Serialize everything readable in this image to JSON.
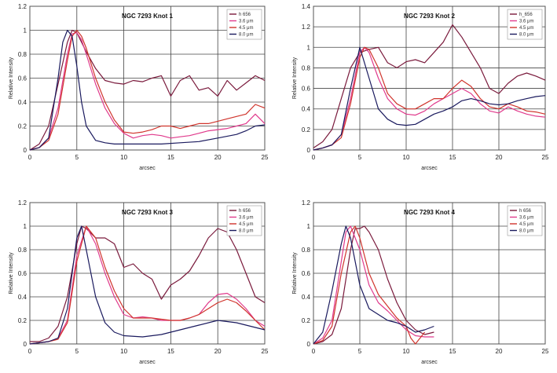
{
  "colors": {
    "h_alpha": "#7a1a3c",
    "c3_6": "#e03a8c",
    "c4_5": "#d0342c",
    "c8_0": "#1a1a5e"
  },
  "chart_data": [
    {
      "type": "line",
      "title": "NGC 7293 Knot 1",
      "xlabel": "arcsec",
      "ylabel": "Relative Intensity",
      "xlim": [
        0,
        25
      ],
      "ylim": [
        0,
        1.2
      ],
      "xticks": [
        "0",
        "5",
        "10",
        "15",
        "20",
        "25"
      ],
      "yticks": [
        "0",
        "0.2",
        "0.4",
        "0.6",
        "0.8",
        "1",
        "1.2"
      ],
      "series": [
        {
          "name": "h 656",
          "color_key": "h_alpha",
          "x": [
            0,
            1,
            2,
            3,
            4,
            4.5,
            5,
            5.5,
            6,
            6.5,
            7,
            8,
            9,
            10,
            11,
            12,
            13,
            14,
            15,
            16,
            17,
            18,
            19,
            20,
            21,
            22,
            23,
            24,
            25
          ],
          "y": [
            0,
            0.05,
            0.2,
            0.55,
            0.9,
            1.0,
            0.98,
            0.9,
            0.82,
            0.75,
            0.68,
            0.58,
            0.56,
            0.55,
            0.58,
            0.57,
            0.6,
            0.62,
            0.45,
            0.58,
            0.62,
            0.5,
            0.52,
            0.45,
            0.58,
            0.5,
            0.56,
            0.62,
            0.58
          ]
        },
        {
          "name": "3.6 μm",
          "color_key": "c3_6",
          "x": [
            0,
            1,
            2,
            3,
            4,
            4.5,
            5,
            5.5,
            6,
            7,
            8,
            9,
            10,
            11,
            12,
            13,
            14,
            15,
            16,
            17,
            18,
            19,
            20,
            21,
            22,
            23,
            24,
            25
          ],
          "y": [
            0,
            0.02,
            0.1,
            0.35,
            0.8,
            0.97,
            0.98,
            0.92,
            0.8,
            0.55,
            0.35,
            0.22,
            0.14,
            0.1,
            0.12,
            0.13,
            0.12,
            0.1,
            0.11,
            0.12,
            0.14,
            0.16,
            0.17,
            0.18,
            0.2,
            0.22,
            0.3,
            0.22
          ]
        },
        {
          "name": "4.5 μm",
          "color_key": "c4_5",
          "x": [
            0,
            1,
            2,
            3,
            4,
            4.5,
            5,
            5.5,
            6,
            7,
            8,
            9,
            10,
            11,
            12,
            13,
            14,
            15,
            16,
            17,
            18,
            19,
            20,
            21,
            22,
            23,
            24,
            25
          ],
          "y": [
            0,
            0.02,
            0.08,
            0.3,
            0.75,
            0.95,
            1.0,
            0.95,
            0.85,
            0.6,
            0.4,
            0.25,
            0.15,
            0.14,
            0.15,
            0.17,
            0.2,
            0.2,
            0.18,
            0.2,
            0.22,
            0.22,
            0.24,
            0.26,
            0.28,
            0.3,
            0.38,
            0.35
          ]
        },
        {
          "name": "8.0 μm",
          "color_key": "c8_0",
          "x": [
            0,
            1,
            2,
            3,
            3.5,
            4,
            4.5,
            5,
            5.5,
            6,
            7,
            8,
            9,
            10,
            12,
            14,
            16,
            18,
            20,
            22,
            23,
            24,
            25
          ],
          "y": [
            0,
            0.02,
            0.1,
            0.6,
            0.9,
            1.0,
            0.95,
            0.7,
            0.4,
            0.2,
            0.08,
            0.06,
            0.05,
            0.05,
            0.05,
            0.05,
            0.06,
            0.07,
            0.1,
            0.13,
            0.16,
            0.2,
            0.21
          ]
        }
      ]
    },
    {
      "type": "line",
      "title": "NGC 7293 Knot 2",
      "xlabel": "arcsec",
      "ylabel": "Relative Intensity",
      "xlim": [
        0,
        25
      ],
      "ylim": [
        0,
        1.4
      ],
      "xticks": [
        "0",
        "5",
        "10",
        "15",
        "20",
        "25"
      ],
      "yticks": [
        "0",
        "0.2",
        "0.4",
        "0.6",
        "0.8",
        "1",
        "1.2",
        "1.4"
      ],
      "series": [
        {
          "name": "h_656",
          "color_key": "h_alpha",
          "x": [
            0,
            1,
            2,
            3,
            4,
            5,
            6,
            7,
            8,
            9,
            10,
            11,
            12,
            13,
            14,
            15,
            16,
            17,
            18,
            19,
            20,
            21,
            22,
            23,
            24,
            25
          ],
          "y": [
            0.02,
            0.08,
            0.2,
            0.5,
            0.8,
            0.95,
            0.98,
            1.0,
            0.85,
            0.8,
            0.86,
            0.88,
            0.85,
            0.95,
            1.05,
            1.22,
            1.1,
            0.95,
            0.8,
            0.6,
            0.55,
            0.65,
            0.72,
            0.75,
            0.72,
            0.68
          ]
        },
        {
          "name": "3.6 μm",
          "color_key": "c3_6",
          "x": [
            0,
            1,
            2,
            3,
            4,
            5,
            5.5,
            6,
            7,
            8,
            9,
            10,
            11,
            12,
            13,
            14,
            15,
            16,
            17,
            18,
            19,
            20,
            21,
            22,
            23,
            24,
            25
          ],
          "y": [
            0,
            0.02,
            0.05,
            0.15,
            0.5,
            0.95,
            1.0,
            0.95,
            0.7,
            0.5,
            0.4,
            0.35,
            0.34,
            0.38,
            0.45,
            0.5,
            0.55,
            0.6,
            0.55,
            0.45,
            0.38,
            0.36,
            0.42,
            0.38,
            0.35,
            0.33,
            0.32
          ]
        },
        {
          "name": "4.5 μm",
          "color_key": "c4_5",
          "x": [
            0,
            1,
            2,
            3,
            4,
            5,
            5.5,
            6,
            7,
            8,
            9,
            10,
            11,
            12,
            13,
            14,
            15,
            16,
            17,
            18,
            19,
            20,
            21,
            22,
            23,
            24,
            25
          ],
          "y": [
            0,
            0.02,
            0.05,
            0.12,
            0.45,
            0.9,
            1.0,
            0.98,
            0.8,
            0.55,
            0.45,
            0.4,
            0.4,
            0.45,
            0.5,
            0.5,
            0.6,
            0.68,
            0.62,
            0.5,
            0.42,
            0.4,
            0.45,
            0.42,
            0.38,
            0.37,
            0.35
          ]
        },
        {
          "name": "8.0 μm",
          "color_key": "c8_0",
          "x": [
            0,
            1,
            2,
            3,
            4,
            5,
            6,
            7,
            8,
            9,
            10,
            11,
            12,
            13,
            14,
            15,
            16,
            17,
            18,
            19,
            20,
            21,
            22,
            23,
            24,
            25
          ],
          "y": [
            0,
            0.02,
            0.05,
            0.15,
            0.6,
            1.0,
            0.7,
            0.4,
            0.3,
            0.25,
            0.24,
            0.25,
            0.3,
            0.35,
            0.38,
            0.42,
            0.48,
            0.5,
            0.48,
            0.45,
            0.44,
            0.45,
            0.48,
            0.5,
            0.52,
            0.53
          ]
        }
      ]
    },
    {
      "type": "line",
      "title": "NGC 7293 Knot 3",
      "xlabel": "arcsec",
      "ylabel": "Relative Intensity",
      "xlim": [
        0,
        25
      ],
      "ylim": [
        0,
        1.2
      ],
      "xticks": [
        "0",
        "5",
        "10",
        "15",
        "20",
        "25"
      ],
      "yticks": [
        "0",
        "0.2",
        "0.4",
        "0.6",
        "0.8",
        "1",
        "1.2"
      ],
      "series": [
        {
          "name": "h 656",
          "color_key": "h_alpha",
          "x": [
            0,
            1,
            2,
            3,
            4,
            5,
            5.5,
            6,
            7,
            8,
            9,
            10,
            11,
            12,
            13,
            14,
            15,
            16,
            17,
            18,
            19,
            20,
            21,
            22,
            23,
            24,
            25
          ],
          "y": [
            0.02,
            0.02,
            0.05,
            0.15,
            0.4,
            0.85,
            1.0,
            0.98,
            0.9,
            0.9,
            0.85,
            0.65,
            0.68,
            0.6,
            0.55,
            0.38,
            0.5,
            0.55,
            0.62,
            0.75,
            0.9,
            0.98,
            0.95,
            0.8,
            0.6,
            0.4,
            0.35
          ]
        },
        {
          "name": "3.6 μm",
          "color_key": "c3_6",
          "x": [
            0,
            1,
            2,
            3,
            4,
            5,
            6,
            7,
            8,
            9,
            10,
            11,
            12,
            13,
            14,
            15,
            16,
            17,
            18,
            19,
            20,
            21,
            22,
            23,
            24,
            25
          ],
          "y": [
            0,
            0.01,
            0.02,
            0.05,
            0.2,
            0.75,
            1.0,
            0.85,
            0.6,
            0.4,
            0.25,
            0.22,
            0.23,
            0.22,
            0.2,
            0.2,
            0.2,
            0.22,
            0.25,
            0.35,
            0.42,
            0.43,
            0.38,
            0.3,
            0.2,
            0.15
          ]
        },
        {
          "name": "4.5 μm",
          "color_key": "c4_5",
          "x": [
            0,
            1,
            2,
            3,
            4,
            5,
            6,
            7,
            8,
            9,
            10,
            11,
            12,
            13,
            14,
            15,
            16,
            17,
            18,
            19,
            20,
            21,
            22,
            23,
            24,
            25
          ],
          "y": [
            0,
            0.01,
            0.02,
            0.04,
            0.18,
            0.7,
            1.0,
            0.9,
            0.65,
            0.45,
            0.3,
            0.22,
            0.22,
            0.22,
            0.21,
            0.2,
            0.2,
            0.22,
            0.25,
            0.3,
            0.35,
            0.38,
            0.35,
            0.28,
            0.2,
            0.12
          ]
        },
        {
          "name": "8.0 μm",
          "color_key": "c8_0",
          "x": [
            0,
            1,
            2,
            3,
            4,
            5,
            5.5,
            6,
            7,
            8,
            9,
            10,
            12,
            14,
            16,
            18,
            20,
            22,
            24,
            25
          ],
          "y": [
            0,
            0.01,
            0.02,
            0.05,
            0.3,
            0.9,
            1.0,
            0.8,
            0.4,
            0.18,
            0.1,
            0.07,
            0.06,
            0.08,
            0.12,
            0.16,
            0.2,
            0.18,
            0.14,
            0.12
          ]
        }
      ]
    },
    {
      "type": "line",
      "title": "NGC 7293 Knot 4",
      "xlabel": "arcsec",
      "ylabel": "Relative Intensity",
      "xlim": [
        0,
        25
      ],
      "ylim": [
        0,
        1.2
      ],
      "xticks": [
        "0",
        "5",
        "10",
        "15",
        "20",
        "25"
      ],
      "yticks": [
        "0",
        "0.2",
        "0.4",
        "0.6",
        "0.8",
        "1",
        "1.2"
      ],
      "series": [
        {
          "name": "h 656",
          "color_key": "h_alpha",
          "x": [
            0,
            1,
            2,
            3,
            4,
            4.5,
            5,
            5.5,
            6,
            7,
            8,
            9,
            10,
            11,
            12,
            13
          ],
          "y": [
            0,
            0.02,
            0.08,
            0.3,
            0.8,
            0.98,
            0.98,
            1.0,
            0.95,
            0.8,
            0.55,
            0.35,
            0.2,
            0.12,
            0.08,
            0.1
          ]
        },
        {
          "name": "3.6 μm",
          "color_key": "c3_6",
          "x": [
            0,
            1,
            2,
            3,
            3.5,
            4,
            5,
            6,
            7,
            8,
            9,
            10,
            11,
            12,
            13
          ],
          "y": [
            0,
            0.05,
            0.2,
            0.7,
            0.95,
            1.0,
            0.8,
            0.5,
            0.35,
            0.28,
            0.2,
            0.12,
            0.07,
            0.06,
            0.06
          ]
        },
        {
          "name": "4.5 μm",
          "color_key": "c4_5",
          "x": [
            0,
            1,
            2,
            3,
            4,
            4.5,
            5,
            6,
            7,
            8,
            9,
            10,
            10.5,
            11,
            12
          ],
          "y": [
            0,
            0.03,
            0.15,
            0.6,
            0.95,
            1.0,
            0.9,
            0.6,
            0.42,
            0.32,
            0.22,
            0.15,
            0.05,
            0.0,
            0.1
          ]
        },
        {
          "name": "8.0 μm",
          "color_key": "c8_0",
          "x": [
            0,
            1,
            2,
            3,
            3.5,
            4,
            5,
            6,
            7,
            8,
            9,
            10,
            11,
            12,
            13
          ],
          "y": [
            0,
            0.1,
            0.45,
            0.85,
            1.0,
            0.9,
            0.5,
            0.3,
            0.25,
            0.2,
            0.18,
            0.15,
            0.1,
            0.12,
            0.15
          ]
        }
      ]
    }
  ]
}
